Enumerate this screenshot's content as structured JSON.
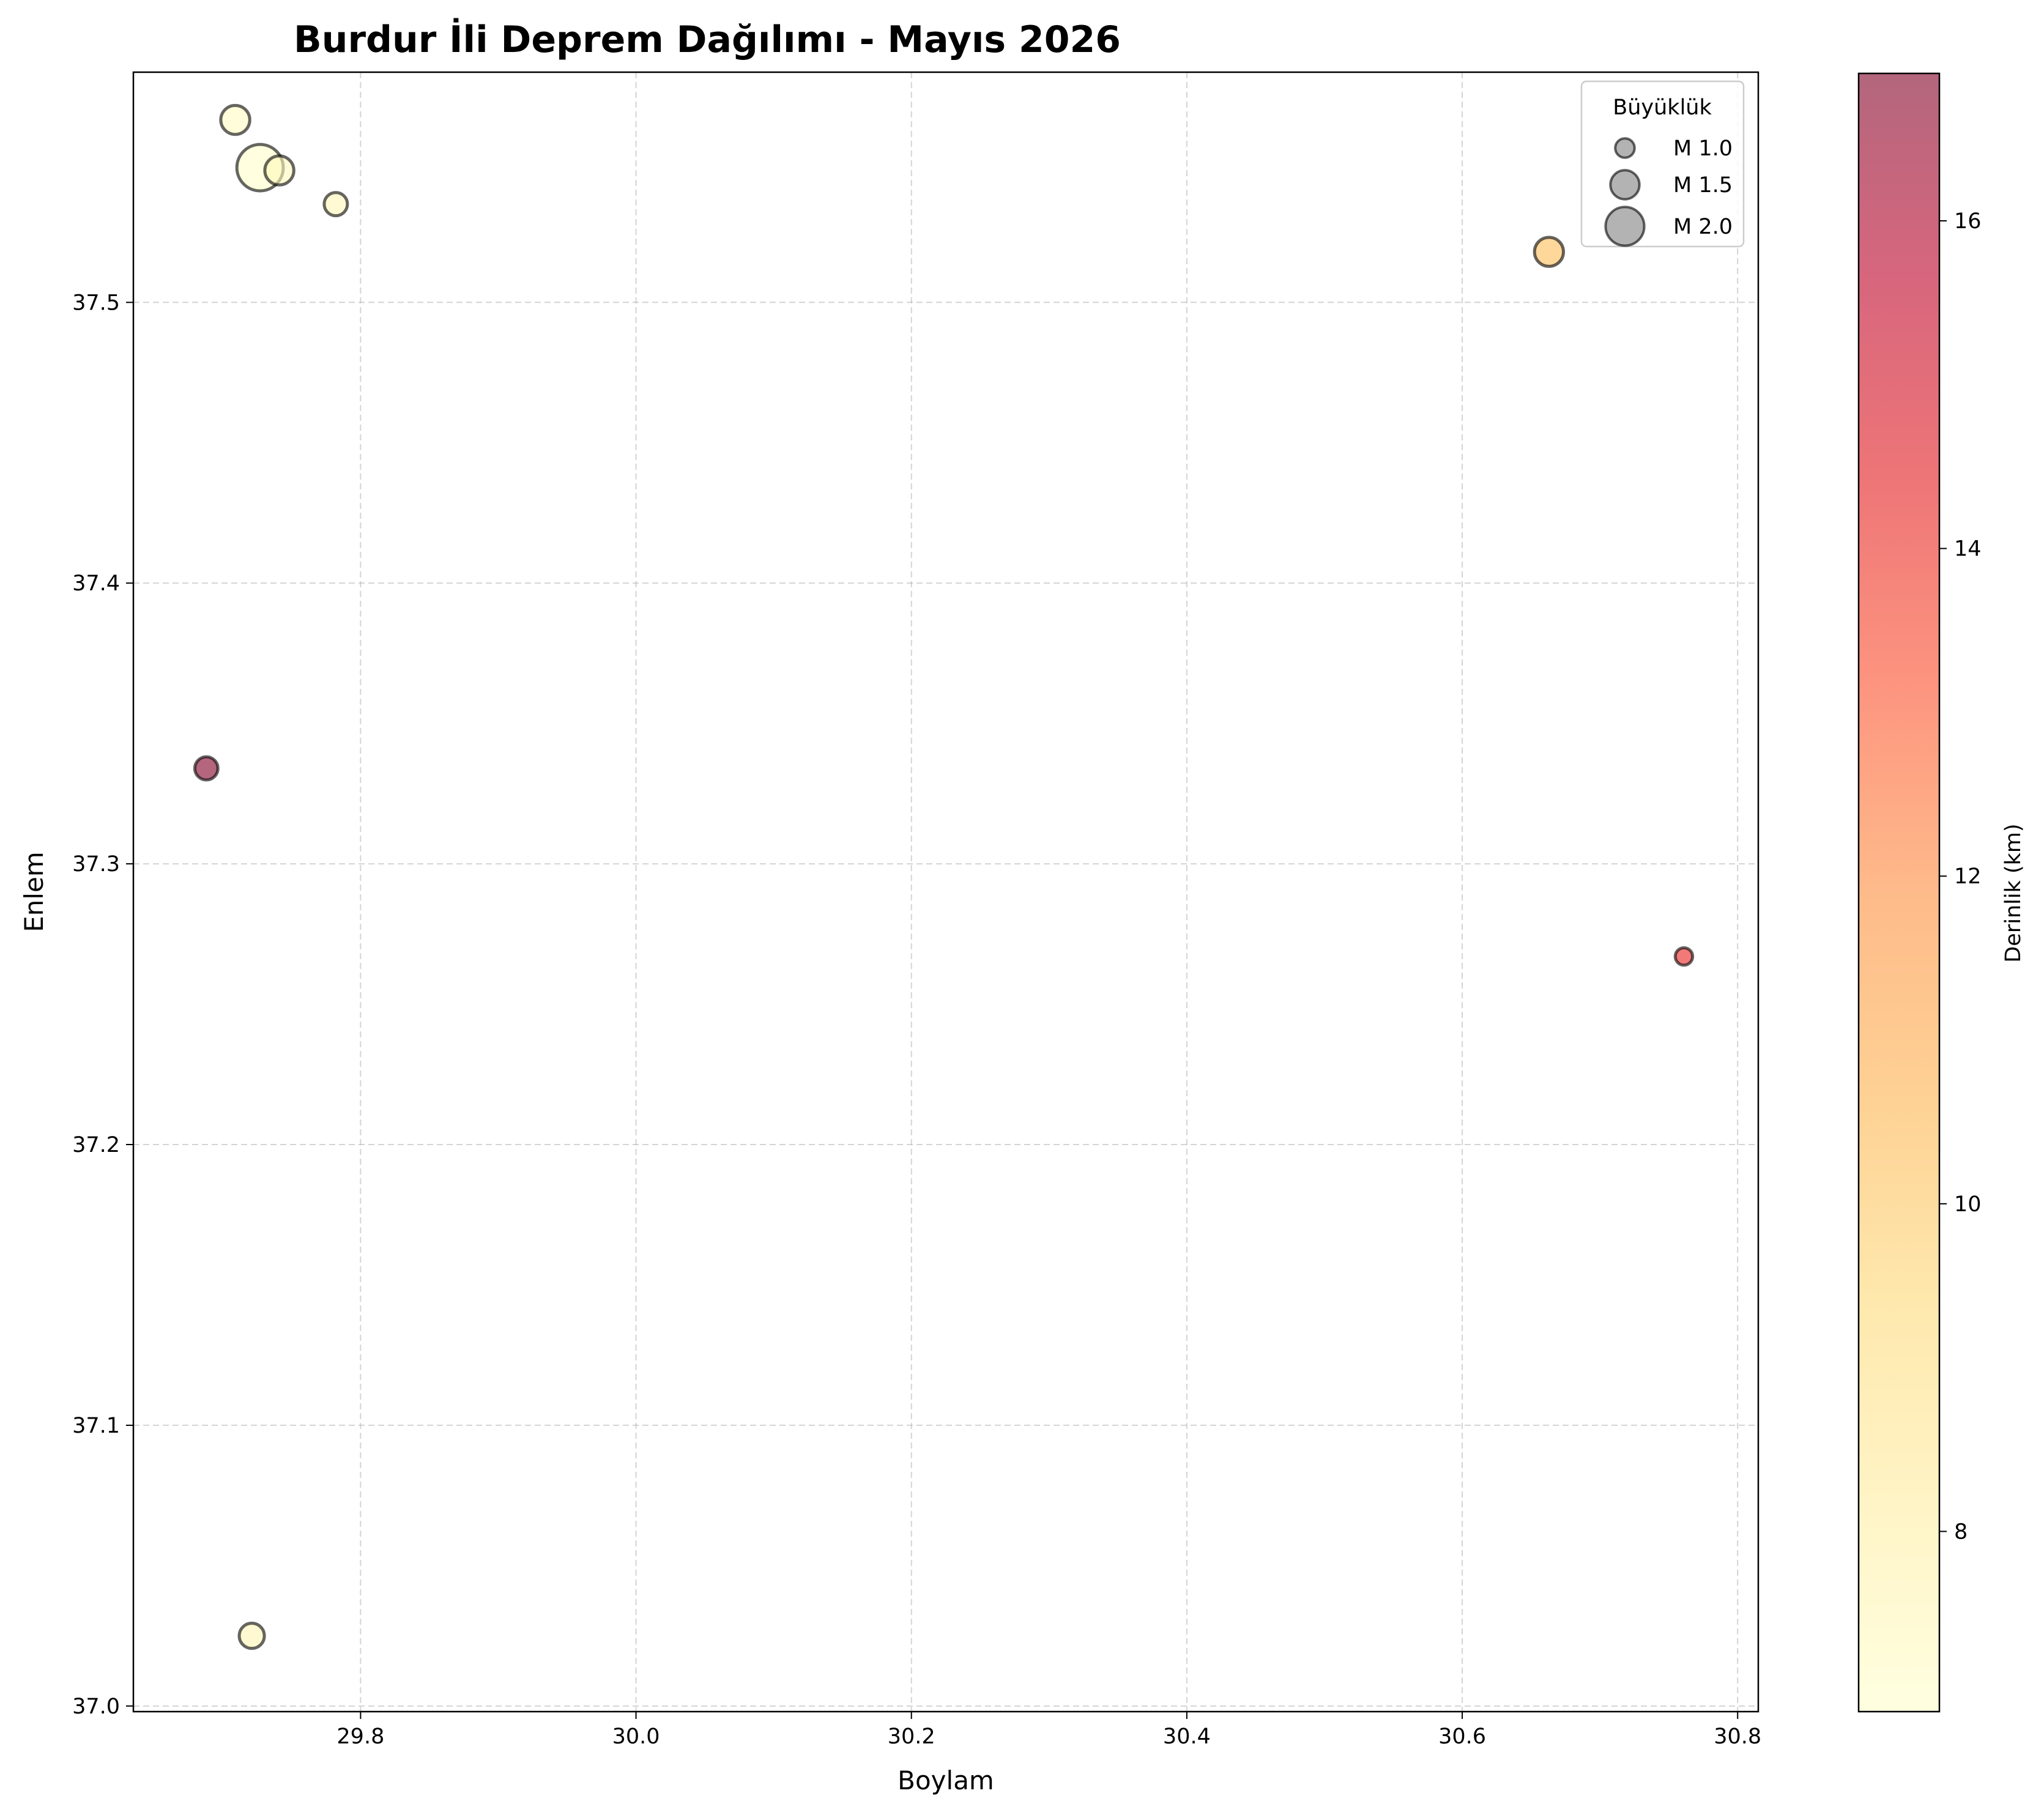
{
  "chart_data": {
    "type": "scatter",
    "title": "Burdur İli Deprem Dağılımı - Mayıs 2026",
    "xlabel": "Boylam",
    "ylabel": "Enlem",
    "xlim": [
      29.635,
      30.815
    ],
    "ylim": [
      36.998,
      37.582
    ],
    "xticks": [
      29.8,
      30.0,
      30.2,
      30.4,
      30.6,
      30.8
    ],
    "yticks": [
      37.0,
      37.1,
      37.2,
      37.3,
      37.4,
      37.5
    ],
    "x_tick_labels": [
      "29.8",
      "30.0",
      "30.2",
      "30.4",
      "30.6",
      "30.8"
    ],
    "y_tick_labels": [
      "37.0",
      "37.1",
      "37.2",
      "37.3",
      "37.4",
      "37.5"
    ],
    "grid": true,
    "legend": {
      "title": "Büyüklük",
      "placement": "top-right",
      "entries": [
        {
          "label": "M 1.0",
          "magnitude": 1.0
        },
        {
          "label": "M 1.5",
          "magnitude": 1.5
        },
        {
          "label": "M 2.0",
          "magnitude": 2.0
        }
      ]
    },
    "colorbar": {
      "label": "Derinlik (km)",
      "range": [
        6.9,
        16.9
      ],
      "ticks": [
        8,
        10,
        12,
        14,
        16
      ],
      "tick_labels": [
        "8",
        "10",
        "12",
        "14",
        "16"
      ],
      "colormap": "YlOrRd",
      "alpha": 0.6
    },
    "points": [
      {
        "lon": 29.709,
        "lat": 37.565,
        "magnitude": 1.5,
        "depth_km": 7.2
      },
      {
        "lon": 29.727,
        "lat": 37.548,
        "magnitude": 2.4,
        "depth_km": 7.0
      },
      {
        "lon": 29.741,
        "lat": 37.547,
        "magnitude": 1.5,
        "depth_km": 7.4
      },
      {
        "lon": 29.782,
        "lat": 37.535,
        "magnitude": 1.2,
        "depth_km": 7.5
      },
      {
        "lon": 29.688,
        "lat": 37.334,
        "magnitude": 1.2,
        "depth_km": 16.9
      },
      {
        "lon": 29.721,
        "lat": 37.025,
        "magnitude": 1.3,
        "depth_km": 7.6
      },
      {
        "lon": 30.663,
        "lat": 37.518,
        "magnitude": 1.5,
        "depth_km": 10.3
      },
      {
        "lon": 30.761,
        "lat": 37.267,
        "magnitude": 0.9,
        "depth_km": 14.2
      }
    ],
    "colors": {
      "marker_edge": "#000000",
      "grid": "#b0b0b0",
      "legend_marker": "#808080"
    }
  }
}
